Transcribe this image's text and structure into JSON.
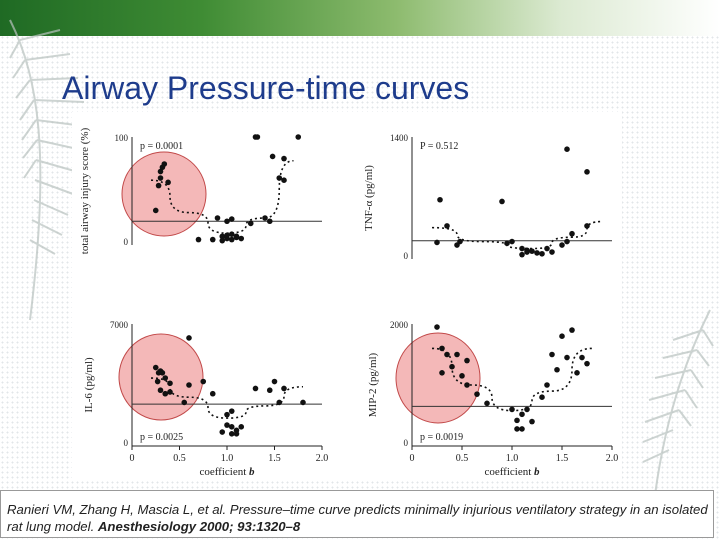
{
  "slide": {
    "title": "Airway Pressure-time curves",
    "citation_plain": "Ranieri VM, Zhang H, Mascia L, et al. Pressure–time curve predicts minimally injurious ventilatory strategy in an isolated rat lung model. ",
    "citation_bold": "Anesthesiology 2000; 93:1320–8"
  },
  "colors": {
    "title": "#1e3c8c",
    "highlight_fill": "#f4b8b8",
    "points": "#111111"
  },
  "chart_data": [
    {
      "type": "scatter",
      "ylabel": "total airway injury score (%)",
      "y_ticks": [
        "100",
        "0"
      ],
      "ylim": [
        0,
        100
      ],
      "xlim": [
        0,
        2.0
      ],
      "p_value": "p = 0.0001",
      "points": [
        [
          0.28,
          55
        ],
        [
          0.3,
          68
        ],
        [
          0.32,
          72
        ],
        [
          0.34,
          75
        ],
        [
          0.3,
          62
        ],
        [
          0.38,
          58
        ],
        [
          0.25,
          32
        ],
        [
          0.9,
          25
        ],
        [
          1.0,
          22
        ],
        [
          1.05,
          24
        ],
        [
          1.4,
          25
        ],
        [
          1.45,
          22
        ],
        [
          1.25,
          20
        ],
        [
          0.85,
          5
        ],
        [
          0.95,
          8
        ],
        [
          1.0,
          6
        ],
        [
          1.05,
          5
        ],
        [
          1.1,
          7
        ],
        [
          1.15,
          6
        ],
        [
          1.0,
          9
        ],
        [
          1.05,
          10
        ],
        [
          1.1,
          8
        ],
        [
          0.7,
          5
        ],
        [
          0.95,
          4
        ],
        [
          1.3,
          100
        ],
        [
          1.32,
          100
        ],
        [
          1.75,
          100
        ],
        [
          1.6,
          80
        ],
        [
          1.48,
          82
        ],
        [
          1.55,
          62
        ],
        [
          1.6,
          60
        ]
      ],
      "reference_y": 22,
      "fit_curve": [
        [
          0.2,
          60
        ],
        [
          0.6,
          30
        ],
        [
          1.0,
          11
        ],
        [
          1.4,
          25
        ],
        [
          1.7,
          78
        ]
      ]
    },
    {
      "type": "scatter",
      "ylabel": "TNF-α (pg/ml)",
      "y_ticks": [
        "1400",
        "0"
      ],
      "ylim": [
        0,
        1400
      ],
      "xlim": [
        0,
        2.0
      ],
      "p_value": "P = 0.512",
      "points": [
        [
          0.28,
          680
        ],
        [
          0.35,
          380
        ],
        [
          0.45,
          160
        ],
        [
          0.48,
          200
        ],
        [
          0.9,
          660
        ],
        [
          0.95,
          180
        ],
        [
          1.0,
          200
        ],
        [
          0.25,
          190
        ],
        [
          1.1,
          120
        ],
        [
          1.15,
          80
        ],
        [
          1.2,
          90
        ],
        [
          1.25,
          70
        ],
        [
          1.3,
          60
        ],
        [
          1.35,
          120
        ],
        [
          1.4,
          80
        ],
        [
          1.5,
          160
        ],
        [
          1.55,
          200
        ],
        [
          1.6,
          290
        ],
        [
          1.1,
          50
        ],
        [
          1.15,
          100
        ],
        [
          1.55,
          1260
        ],
        [
          1.75,
          1000
        ],
        [
          1.75,
          380
        ]
      ],
      "reference_y": 210,
      "fit_curve": [
        [
          0.2,
          360
        ],
        [
          0.7,
          200
        ],
        [
          1.2,
          120
        ],
        [
          1.6,
          250
        ],
        [
          1.9,
          430
        ]
      ]
    },
    {
      "type": "scatter",
      "ylabel": "IL-6 (pg/ml)",
      "y_ticks": [
        "7000",
        "0"
      ],
      "ylim": [
        0,
        7000
      ],
      "xlim": [
        0,
        2.0
      ],
      "p_value": "p = 0.0025",
      "points": [
        [
          0.25,
          4500
        ],
        [
          0.28,
          4200
        ],
        [
          0.3,
          4300
        ],
        [
          0.32,
          4200
        ],
        [
          0.35,
          3900
        ],
        [
          0.27,
          3700
        ],
        [
          0.4,
          3600
        ],
        [
          0.3,
          3200
        ],
        [
          0.35,
          3000
        ],
        [
          0.4,
          3100
        ],
        [
          0.55,
          2500
        ],
        [
          0.6,
          3500
        ],
        [
          0.75,
          3700
        ],
        [
          0.85,
          3000
        ],
        [
          0.6,
          6200
        ],
        [
          1.0,
          1800
        ],
        [
          1.05,
          2000
        ],
        [
          1.0,
          1200
        ],
        [
          1.05,
          1100
        ],
        [
          1.1,
          900
        ],
        [
          0.95,
          800
        ],
        [
          1.05,
          700
        ],
        [
          1.1,
          700
        ],
        [
          1.15,
          1100
        ],
        [
          1.3,
          3300
        ],
        [
          1.45,
          3200
        ],
        [
          1.5,
          3700
        ],
        [
          1.6,
          3300
        ],
        [
          1.8,
          2500
        ],
        [
          1.55,
          2500
        ]
      ],
      "reference_y": 2400,
      "fit_curve": [
        [
          0.2,
          3900
        ],
        [
          0.6,
          2800
        ],
        [
          1.0,
          1600
        ],
        [
          1.4,
          2300
        ],
        [
          1.8,
          3400
        ]
      ]
    },
    {
      "type": "scatter",
      "ylabel": "MIP-2 (pg/ml)",
      "y_ticks": [
        "2000",
        "0"
      ],
      "ylim": [
        0,
        2000
      ],
      "xlim": [
        0,
        2.0
      ],
      "p_value": "p = 0.0019",
      "points": [
        [
          0.25,
          1950
        ],
        [
          0.3,
          1600
        ],
        [
          0.35,
          1500
        ],
        [
          0.4,
          1300
        ],
        [
          0.45,
          1500
        ],
        [
          0.5,
          1150
        ],
        [
          0.55,
          1000
        ],
        [
          0.65,
          850
        ],
        [
          0.75,
          700
        ],
        [
          0.55,
          1400
        ],
        [
          0.3,
          1200
        ],
        [
          1.0,
          600
        ],
        [
          1.05,
          420
        ],
        [
          1.05,
          280
        ],
        [
          1.1,
          280
        ],
        [
          1.1,
          520
        ],
        [
          1.15,
          600
        ],
        [
          1.2,
          400
        ],
        [
          1.35,
          1000
        ],
        [
          1.45,
          1250
        ],
        [
          1.4,
          1500
        ],
        [
          1.5,
          1800
        ],
        [
          1.55,
          1450
        ],
        [
          1.65,
          1200
        ],
        [
          1.7,
          1450
        ],
        [
          1.75,
          1350
        ],
        [
          1.3,
          800
        ],
        [
          1.6,
          1900
        ]
      ],
      "reference_y": 650,
      "fit_curve": [
        [
          0.2,
          1600
        ],
        [
          0.6,
          1000
        ],
        [
          1.0,
          580
        ],
        [
          1.4,
          900
        ],
        [
          1.8,
          1600
        ]
      ]
    }
  ],
  "x_axis": {
    "tick_labels": [
      "0",
      "0.5",
      "1.0",
      "1.5",
      "2.0"
    ],
    "tick_values": [
      0,
      0.5,
      1.0,
      1.5,
      2.0
    ],
    "xlabel_prefix": "coefficient ",
    "xlabel_var": "b"
  }
}
